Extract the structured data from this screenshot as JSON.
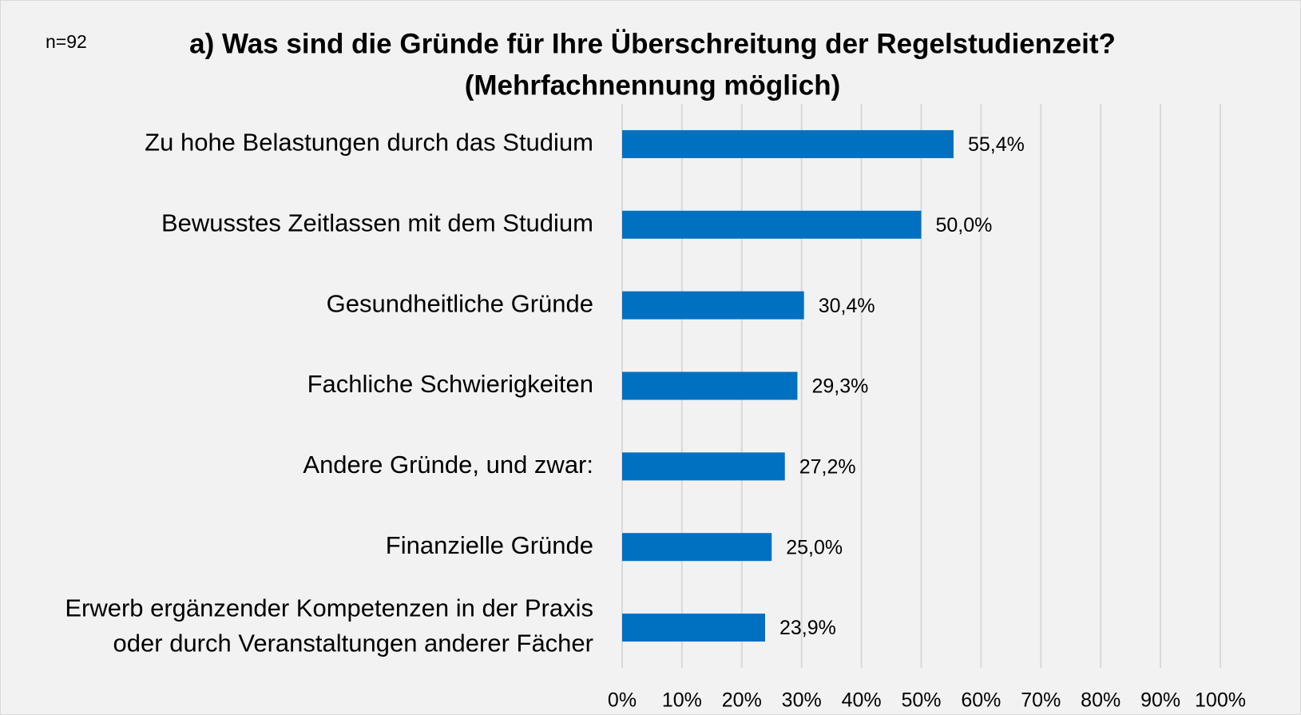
{
  "chart_data": {
    "type": "bar",
    "orientation": "horizontal",
    "title": [
      "a) Was sind die Gründe für Ihre Überschreitung der Regelstudienzeit?",
      "(Mehrfachnennung möglich)"
    ],
    "annotation": "n=92",
    "categories": [
      "Zu hohe Belastungen durch das Studium",
      "Bewusstes Zeitlassen mit dem Studium",
      "Gesundheitliche Gründe",
      "Fachliche Schwierigkeiten",
      "Andere Gründe, und zwar:",
      "Finanzielle Gründe",
      "Erwerb ergänzender Kompetenzen in der Praxis\noder durch Veranstaltungen anderer Fächer"
    ],
    "values": [
      55.4,
      50.0,
      30.4,
      29.3,
      27.2,
      25.0,
      23.9
    ],
    "value_labels": [
      "55,4%",
      "50,0%",
      "30,4%",
      "29,3%",
      "27,2%",
      "25,0%",
      "23,9%"
    ],
    "color": "#0070c0",
    "xlim": [
      0,
      100
    ],
    "xticks": [
      {
        "value": 0,
        "label": "0%"
      },
      {
        "value": 10,
        "label": "10%"
      },
      {
        "value": 20,
        "label": "20%"
      },
      {
        "value": 30,
        "label": "30%"
      },
      {
        "value": 40,
        "label": "40%"
      },
      {
        "value": 50,
        "label": "50%"
      },
      {
        "value": 60,
        "label": "60%"
      },
      {
        "value": 70,
        "label": "70%"
      },
      {
        "value": 80,
        "label": "80%"
      },
      {
        "value": 90,
        "label": "90%"
      },
      {
        "value": 100,
        "label": "100%"
      }
    ],
    "grid": true
  }
}
